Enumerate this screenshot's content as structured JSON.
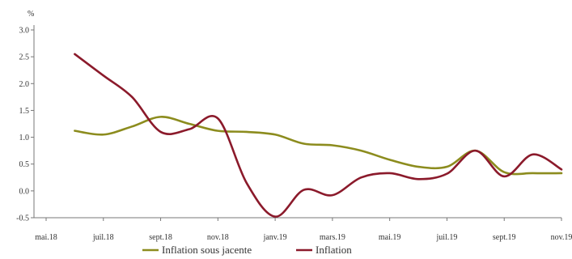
{
  "chart_data": {
    "type": "line",
    "title": "",
    "xlabel": "",
    "ylabel": "%",
    "ylim": [
      -0.5,
      3.0
    ],
    "yticks": [
      "3.0",
      "2.5",
      "2.0",
      "1.5",
      "1.0",
      "0.5",
      "0.0",
      "-0.5"
    ],
    "xticks": [
      "mai.18",
      "juil.18",
      "sept.18",
      "nov.18",
      "janv.19",
      "mars.19",
      "mai.19",
      "juil.19",
      "sept.19",
      "nov.19"
    ],
    "grid": false,
    "legend_position": "bottom",
    "x": [
      "juin.18",
      "juil.18",
      "août.18",
      "sept.18",
      "oct.18",
      "nov.18",
      "déc.18",
      "janv.19",
      "févr.19",
      "mars.19",
      "avr.19",
      "mai.19",
      "juin.19",
      "juil.19",
      "août.19",
      "sept.19",
      "oct.19",
      "nov.19"
    ],
    "series": [
      {
        "name": "Inflation sous jacente",
        "color": "#8c8c1e",
        "values": [
          1.12,
          1.05,
          1.2,
          1.38,
          1.25,
          1.12,
          1.1,
          1.05,
          0.88,
          0.85,
          0.75,
          0.58,
          0.45,
          0.45,
          0.75,
          0.35,
          0.33,
          0.33
        ]
      },
      {
        "name": "Inflation",
        "color": "#8b1a2b",
        "values": [
          2.55,
          2.15,
          1.75,
          1.1,
          1.15,
          1.35,
          0.15,
          -0.48,
          0.02,
          -0.08,
          0.25,
          0.33,
          0.22,
          0.32,
          0.75,
          0.27,
          0.68,
          0.4
        ]
      }
    ]
  }
}
